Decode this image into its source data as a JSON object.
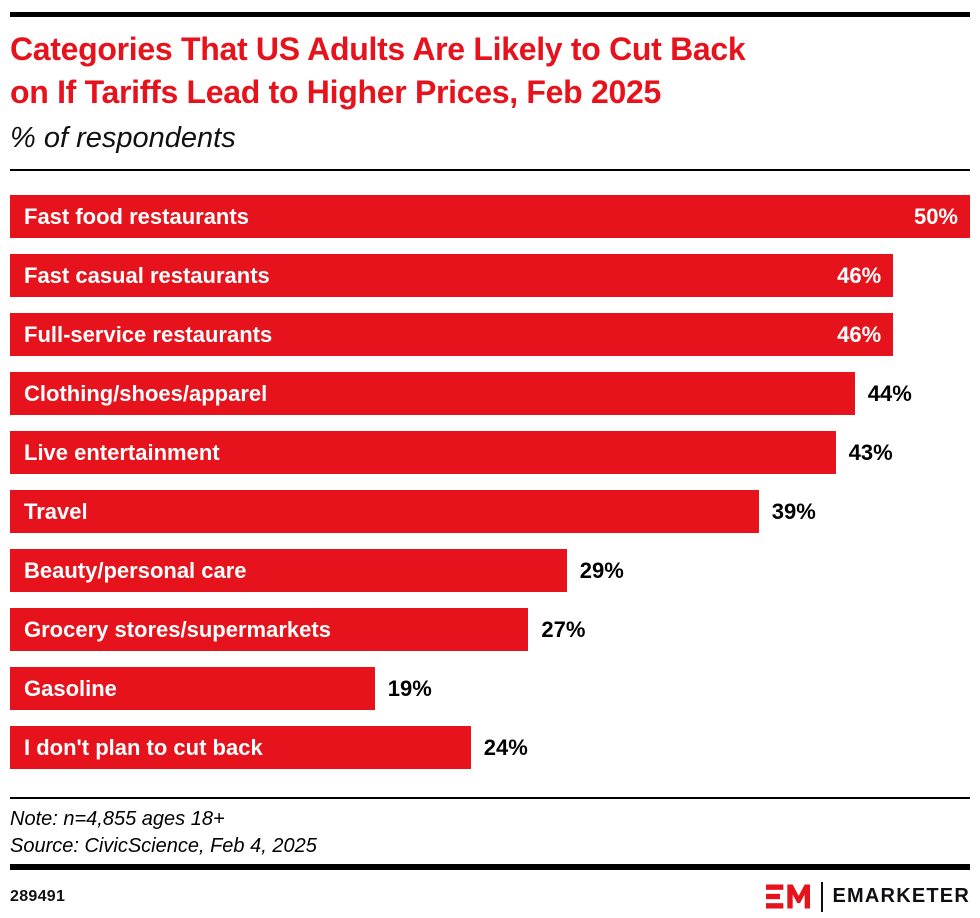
{
  "colors": {
    "accent_red": "#E6121C",
    "rule_black": "#000000"
  },
  "header": {
    "title_lines": [
      "Categories That US Adults Are Likely to Cut Back",
      "on If Tariffs Lead to Higher Prices, Feb 2025"
    ],
    "subtitle": "% of respondents"
  },
  "chart_data": {
    "type": "bar",
    "orientation": "horizontal",
    "title": "Categories That US Adults Are Likely to Cut Back on If Tariffs Lead to Higher Prices, Feb 2025",
    "subtitle": "% of respondents",
    "unit": "%",
    "xlim": [
      0,
      50
    ],
    "grid": false,
    "legend": false,
    "bar_color": "#E6121C",
    "categories": [
      "Fast food restaurants",
      "Fast casual restaurants",
      "Full-service restaurants",
      "Clothing/shoes/apparel",
      "Live entertainment",
      "Travel",
      "Beauty/personal care",
      "Grocery stores/supermarkets",
      "Gasoline",
      "I don't plan to cut back"
    ],
    "values": [
      50,
      46,
      46,
      44,
      43,
      39,
      29,
      27,
      19,
      24
    ],
    "value_labels": [
      "50%",
      "46%",
      "46%",
      "44%",
      "43%",
      "39%",
      "29%",
      "27%",
      "19%",
      "24%"
    ],
    "value_label_position": [
      "inside",
      "inside",
      "inside",
      "outside",
      "outside",
      "outside",
      "outside",
      "outside",
      "outside",
      "outside"
    ]
  },
  "footnote": {
    "note": "Note: n=4,855 ages 18+",
    "source": "Source: CivicScience, Feb 4, 2025"
  },
  "footer": {
    "chart_id": "289491",
    "brand": "EMARKETER"
  }
}
